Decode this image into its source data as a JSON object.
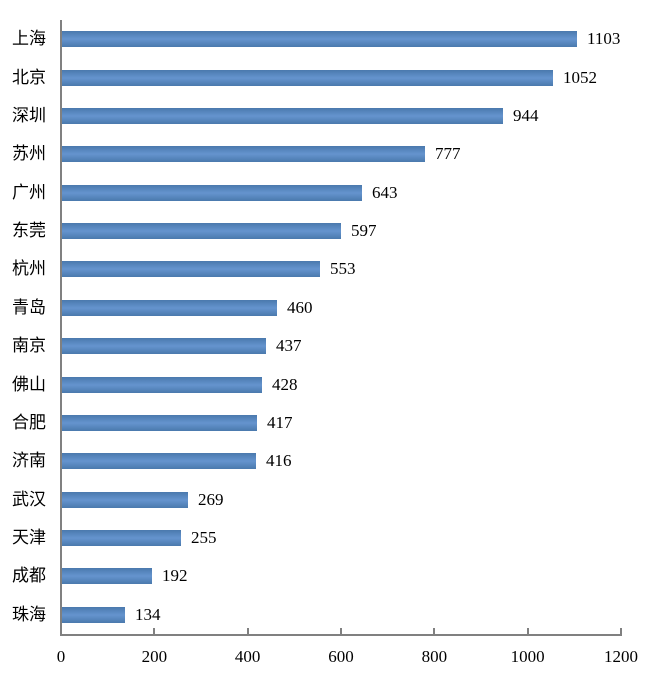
{
  "chart_data": {
    "type": "bar",
    "orientation": "horizontal",
    "title": "",
    "xlabel": "",
    "ylabel": "",
    "categories": [
      "上海",
      "北京",
      "深圳",
      "苏州",
      "广州",
      "东莞",
      "杭州",
      "青岛",
      "南京",
      "佛山",
      "合肥",
      "济南",
      "武汉",
      "天津",
      "成都",
      "珠海"
    ],
    "values": [
      1103,
      1052,
      944,
      777,
      643,
      597,
      553,
      460,
      437,
      428,
      417,
      416,
      269,
      255,
      192,
      134
    ],
    "data_labels": [
      1103,
      1052,
      944,
      777,
      643,
      597,
      553,
      460,
      437,
      428,
      417,
      416,
      269,
      255,
      192,
      134
    ],
    "xlim": [
      0,
      1200
    ],
    "x_ticks": [
      0,
      200,
      400,
      600,
      800,
      1000,
      1200
    ],
    "grid": false,
    "legend": false,
    "bar_color": "#4f81bd",
    "bar_gradient_top": "#4a79ad",
    "bar_gradient_mid": "#6594ce",
    "bar_gradient_bottom": "#4a79ad",
    "axis_color": "#808080",
    "text_color": "#000000",
    "background_color": "#ffffff"
  }
}
